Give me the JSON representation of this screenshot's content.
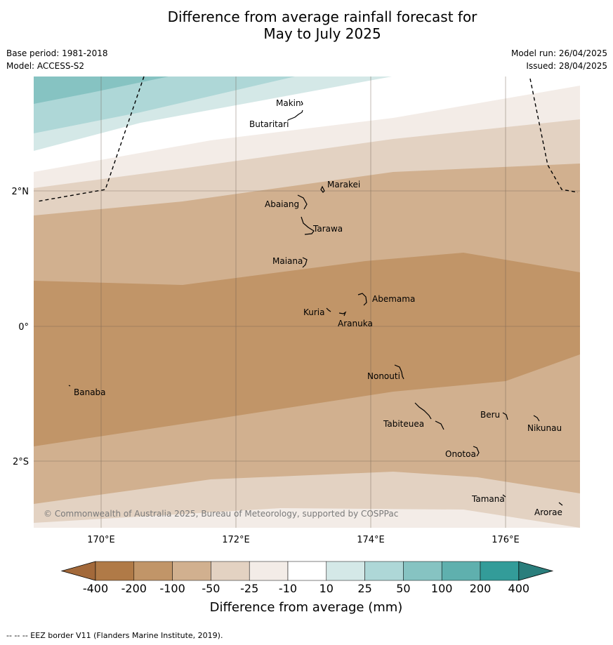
{
  "title": {
    "line1": "Difference from average rainfall forecast for",
    "line2": "May to July 2025"
  },
  "meta_left": {
    "base_period": "Base period: 1981-2018",
    "model": "Model: ACCESS-S2"
  },
  "meta_right": {
    "model_run": "Model run: 26/04/2025",
    "issued": "Issued: 28/04/2025"
  },
  "map": {
    "lat_labels": [
      "2°N",
      "0°",
      "2°S"
    ],
    "lon_labels": [
      "170°E",
      "172°E",
      "174°E",
      "176°E"
    ],
    "copyright": "© Commonwealth of Australia 2025, Bureau of Meteorology, supported by COSPPac",
    "islands": [
      "Makin",
      "Butaritari",
      "Marakei",
      "Abaiang",
      "Tarawa",
      "Maiana",
      "Abemama",
      "Kuria",
      "Aranuka",
      "Nonouti",
      "Banaba",
      "Tabiteuea",
      "Beru",
      "Nikunau",
      "Onotoa",
      "Tamana",
      "Arorae"
    ]
  },
  "legend": {
    "ticks": [
      "-400",
      "-200",
      "-100",
      "-50",
      "-25",
      "-10",
      "10",
      "25",
      "50",
      "100",
      "200",
      "400"
    ],
    "title": "Difference from average (mm)",
    "colors": {
      "below_400": "#a3693a",
      "b200_400": "#b07a47",
      "b100_200": "#c19568",
      "b50_100": "#d1b08f",
      "b25_50": "#e3d2c2",
      "b10_25": "#f3ece7",
      "neutral": "#ffffff",
      "a10_25": "#d4e8e7",
      "a25_50": "#aed7d7",
      "a50_100": "#86c3c2",
      "a100_200": "#5fb0ae",
      "a200_400": "#339c99",
      "above_400": "#2a7e7c"
    }
  },
  "footnote": "--  --  -- EEZ border V11 (Flanders Marine Institute, 2019)."
}
